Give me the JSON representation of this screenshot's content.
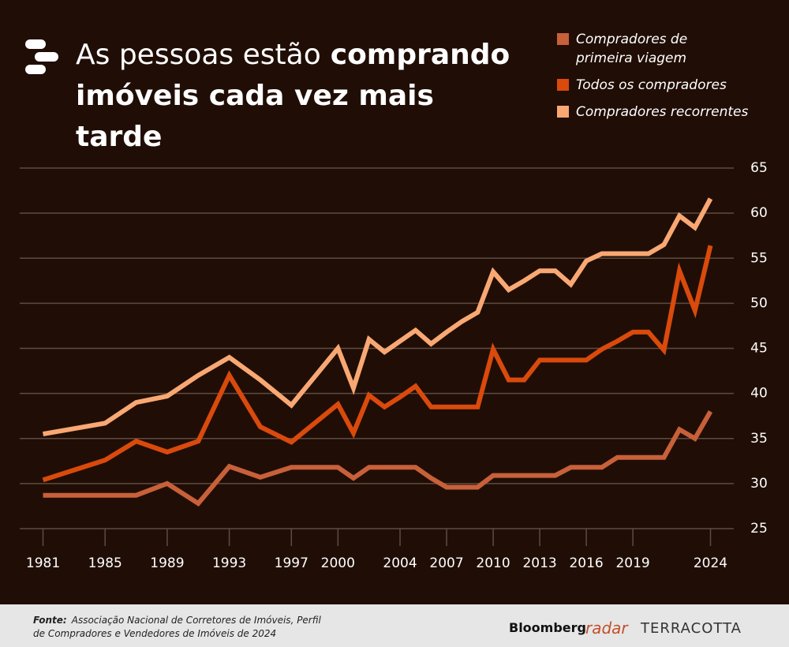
{
  "chart_data": {
    "type": "line",
    "title_regular": "As pessoas estão",
    "title_bold": "comprando imóveis cada vez mais tarde",
    "x": [
      1981,
      1985,
      1987,
      1989,
      1991,
      1993,
      1995,
      1997,
      2000,
      2001,
      2002,
      2003,
      2004,
      2005,
      2006,
      2007,
      2008,
      2009,
      2010,
      2011,
      2012,
      2013,
      2014,
      2015,
      2016,
      2017,
      2018,
      2019,
      2020,
      2021,
      2022,
      2023,
      2024
    ],
    "series": [
      {
        "name": "Compradores de primeira viagem",
        "color": "#c8603a",
        "values": [
          28.7,
          28.7,
          28.7,
          30,
          27.8,
          31.9,
          30.7,
          31.8,
          31.8,
          30.6,
          31.8,
          31.8,
          31.8,
          31.8,
          30.6,
          29.6,
          29.6,
          29.6,
          30.9,
          30.9,
          30.9,
          30.9,
          30.9,
          31.8,
          31.8,
          31.8,
          32.9,
          32.9,
          32.9,
          32.9,
          36,
          35,
          38
        ]
      },
      {
        "name": "Todos os compradores",
        "color": "#d94a0c",
        "values": [
          30.4,
          32.6,
          34.7,
          33.5,
          34.7,
          42,
          36.3,
          34.6,
          38.8,
          35.6,
          39.8,
          38.5,
          39.6,
          40.8,
          38.5,
          38.5,
          38.5,
          38.5,
          44.9,
          41.5,
          41.5,
          43.7,
          43.7,
          43.7,
          43.7,
          44.9,
          45.8,
          46.8,
          46.8,
          44.8,
          53.6,
          49.2,
          56.4
        ]
      },
      {
        "name": "Compradores recorrentes",
        "color": "#f9a873",
        "values": [
          35.5,
          36.7,
          39,
          39.7,
          42,
          44,
          41.5,
          38.7,
          45,
          40.6,
          46,
          44.6,
          45.8,
          47,
          45.5,
          46.8,
          48,
          49,
          53.5,
          51.5,
          52.5,
          53.6,
          53.6,
          52.1,
          54.7,
          55.5,
          55.5,
          55.5,
          55.5,
          56.5,
          59.7,
          58.4,
          61.6
        ]
      }
    ],
    "xlim": [
      1979.5,
      2025.5
    ],
    "xticks": [
      1981,
      1985,
      1989,
      1993,
      1997,
      2000,
      2004,
      2007,
      2010,
      2013,
      2016,
      2019,
      2024
    ],
    "ylim": [
      25,
      65
    ],
    "yticks": [
      25,
      30,
      35,
      40,
      45,
      50,
      55,
      60,
      65
    ],
    "grid": true,
    "legend": "top-right"
  },
  "footer": {
    "source_label": "Fonte:",
    "source_text": "Associação Nacional de Corretores de Imóveis, Perfil de Compradores e Vendedores de Imóveis de 2024",
    "brand_1": "Bloomberg",
    "brand_2": "radar",
    "brand_3": "TERRACOTTA"
  }
}
